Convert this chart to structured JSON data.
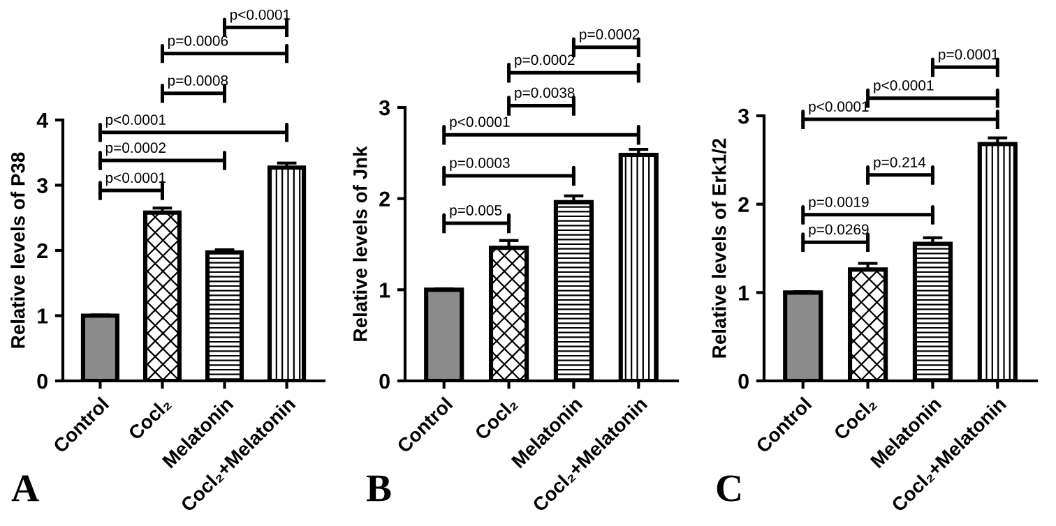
{
  "chart_data": [
    {
      "type": "bar",
      "title": "A",
      "ylabel": "Relative levels of P38",
      "categories": [
        "Control",
        "Cocl₂",
        "Melatonin",
        "Cocl₂+Melatonin"
      ],
      "values": [
        1.0,
        2.58,
        1.97,
        3.27
      ],
      "errors": [
        0.01,
        0.07,
        0.04,
        0.07
      ],
      "colors": [
        "#8c8c8c",
        "#000000",
        "#000000",
        "#000000"
      ],
      "ylim": [
        0,
        4
      ],
      "yticks": [
        0,
        1,
        2,
        3,
        4
      ],
      "annotations": [
        "p<0.0001",
        "p=0.0002",
        "p<0.0001",
        "p=0.0008",
        "p=0.0006",
        "p<0.0001"
      ]
    },
    {
      "type": "bar",
      "title": "B",
      "ylabel": "Relative levels of Jnk",
      "categories": [
        "Control",
        "Cocl₂",
        "Melatonin",
        "Cocl₂+Melatonin"
      ],
      "values": [
        1.0,
        1.46,
        1.96,
        2.48
      ],
      "errors": [
        0.01,
        0.08,
        0.07,
        0.06
      ],
      "colors": [
        "#8c8c8c",
        "#000000",
        "#000000",
        "#000000"
      ],
      "ylim": [
        0,
        3
      ],
      "yticks": [
        0,
        1,
        2,
        3
      ],
      "annotations": [
        "p=0.005",
        "p=0.0003",
        "p<0.0001",
        "p=0.0038",
        "p=0.0002",
        "p=0.0002"
      ]
    },
    {
      "type": "bar",
      "title": "C",
      "ylabel": "Relative levels of Erk1/2",
      "categories": [
        "Control",
        "Cocl₂",
        "Melatonin",
        "Cocl₂+Melatonin"
      ],
      "values": [
        1.0,
        1.26,
        1.55,
        2.68
      ],
      "errors": [
        0.01,
        0.07,
        0.07,
        0.07
      ],
      "colors": [
        "#8c8c8c",
        "#000000",
        "#000000",
        "#000000"
      ],
      "ylim": [
        0,
        3
      ],
      "yticks": [
        0,
        1,
        2,
        3
      ],
      "annotations": [
        "p=0.0269",
        "p=0.0019",
        "p=0.214",
        "p<0.0001",
        "p<0.0001",
        "p=0.0001"
      ]
    }
  ]
}
